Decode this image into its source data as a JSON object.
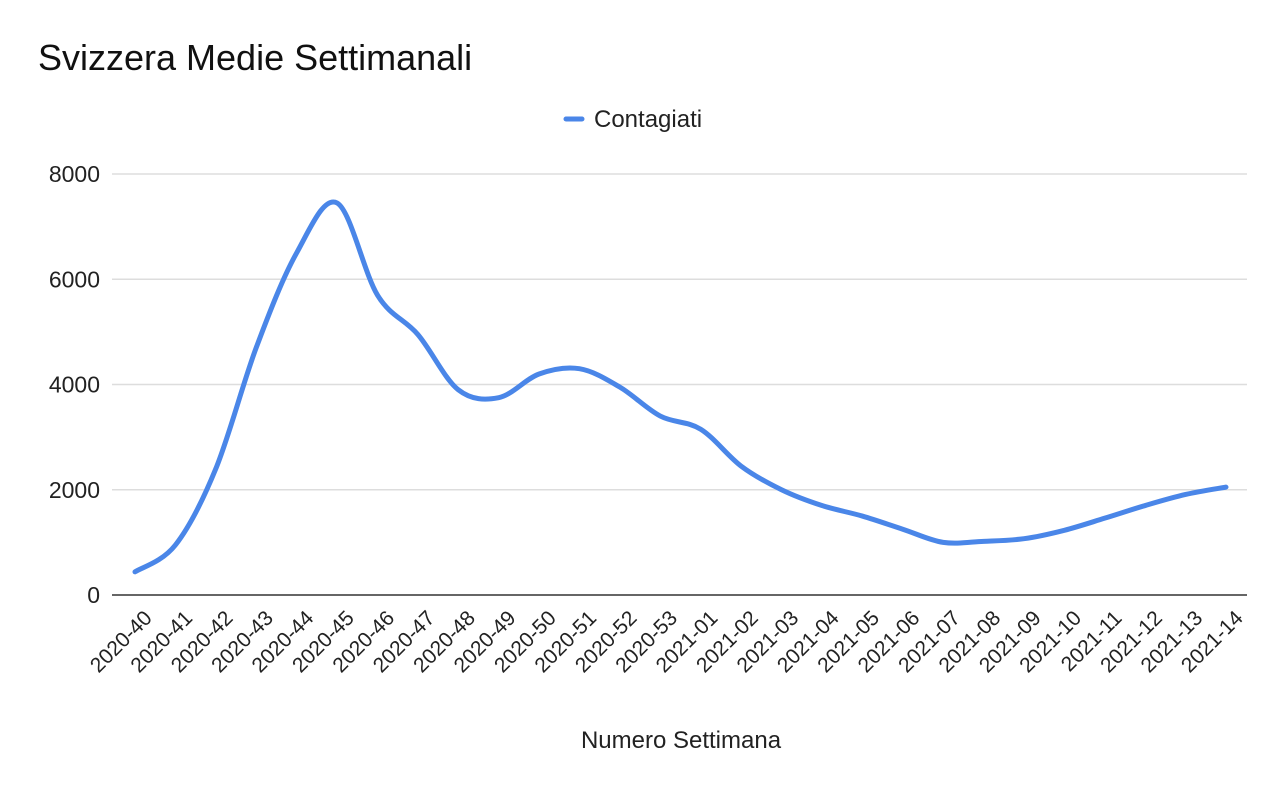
{
  "chart_data": {
    "type": "line",
    "title": "Svizzera Medie Settimanali",
    "xlabel": "Numero Settimana",
    "ylabel": "",
    "ylim": [
      0,
      8000
    ],
    "yticks": [
      0,
      2000,
      4000,
      6000,
      8000
    ],
    "grid": true,
    "legend_position": "top-center",
    "categories": [
      "2020-40",
      "2020-41",
      "2020-42",
      "2020-43",
      "2020-44",
      "2020-45",
      "2020-46",
      "2020-47",
      "2020-48",
      "2020-49",
      "2020-50",
      "2020-51",
      "2020-52",
      "2020-53",
      "2021-01",
      "2021-02",
      "2021-03",
      "2021-04",
      "2021-05",
      "2021-06",
      "2021-07",
      "2021-08",
      "2021-09",
      "2021-10",
      "2021-11",
      "2021-12",
      "2021-13",
      "2021-14"
    ],
    "series": [
      {
        "name": "Contagiati",
        "color": "#4a86e8",
        "values": [
          440,
          950,
          2400,
          4700,
          6500,
          7450,
          5700,
          4950,
          3900,
          3750,
          4200,
          4300,
          3950,
          3400,
          3150,
          2450,
          2000,
          1700,
          1500,
          1250,
          1000,
          1020,
          1070,
          1230,
          1460,
          1700,
          1910,
          2050
        ]
      }
    ]
  }
}
